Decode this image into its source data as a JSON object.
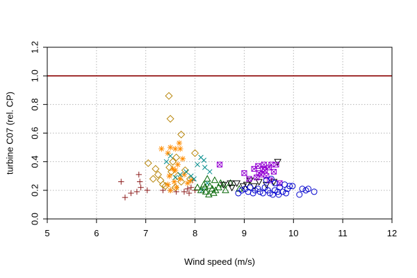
{
  "chart_data": {
    "type": "scatter",
    "title": "",
    "xlabel": "Wind speed (m/s)",
    "ylabel": "turbine  C07  (rel. CP)",
    "xlim": [
      5,
      12
    ],
    "ylim": [
      0,
      1.2
    ],
    "xticks": [
      "5",
      "6",
      "7",
      "8",
      "9",
      "10",
      "11",
      "12"
    ],
    "yticks": [
      "0.0",
      "0.2",
      "0.4",
      "0.6",
      "0.8",
      "1.0",
      "1.2"
    ],
    "grid": true,
    "reference_line": {
      "y": 1.0,
      "color": "#8b0000"
    },
    "series": [
      {
        "marker": "plus",
        "color": "#8b1a1a",
        "points": [
          [
            6.5,
            0.26
          ],
          [
            6.58,
            0.15
          ],
          [
            6.7,
            0.18
          ],
          [
            6.82,
            0.19
          ],
          [
            6.86,
            0.31
          ],
          [
            6.88,
            0.26
          ],
          [
            6.9,
            0.22
          ],
          [
            7.03,
            0.2
          ],
          [
            7.35,
            0.2
          ],
          [
            7.5,
            0.2
          ],
          [
            7.62,
            0.19
          ],
          [
            7.78,
            0.19
          ],
          [
            7.85,
            0.21
          ],
          [
            7.88,
            0.18
          ],
          [
            7.92,
            0.22
          ],
          [
            8.0,
            0.2
          ],
          [
            7.95,
            0.27
          ]
        ]
      },
      {
        "marker": "diamond",
        "color": "#b8860b",
        "points": [
          [
            7.47,
            0.86
          ],
          [
            7.5,
            0.7
          ],
          [
            7.72,
            0.59
          ],
          [
            7.62,
            0.43
          ],
          [
            7.05,
            0.39
          ],
          [
            7.2,
            0.35
          ],
          [
            7.25,
            0.31
          ],
          [
            7.3,
            0.27
          ],
          [
            7.35,
            0.24
          ],
          [
            7.4,
            0.23
          ],
          [
            7.48,
            0.36
          ],
          [
            7.52,
            0.33
          ],
          [
            7.55,
            0.4
          ],
          [
            7.6,
            0.22
          ],
          [
            7.65,
            0.3
          ],
          [
            7.72,
            0.26
          ],
          [
            7.8,
            0.34
          ],
          [
            8.0,
            0.46
          ],
          [
            7.15,
            0.28
          ],
          [
            7.9,
            0.28
          ]
        ]
      },
      {
        "marker": "star",
        "color": "#ff8c00",
        "points": [
          [
            7.32,
            0.49
          ],
          [
            7.5,
            0.5
          ],
          [
            7.6,
            0.49
          ],
          [
            7.7,
            0.49
          ],
          [
            7.68,
            0.53
          ],
          [
            7.75,
            0.42
          ],
          [
            7.45,
            0.46
          ],
          [
            7.55,
            0.35
          ],
          [
            7.48,
            0.3
          ],
          [
            7.58,
            0.26
          ],
          [
            7.62,
            0.22
          ],
          [
            7.7,
            0.28
          ],
          [
            7.78,
            0.31
          ],
          [
            7.85,
            0.25
          ],
          [
            7.92,
            0.27
          ],
          [
            7.65,
            0.38
          ],
          [
            7.5,
            0.2
          ],
          [
            7.45,
            0.24
          ],
          [
            7.6,
            0.34
          ]
        ]
      },
      {
        "marker": "cross",
        "color": "#008b8b",
        "points": [
          [
            7.5,
            0.44
          ],
          [
            7.42,
            0.4
          ],
          [
            7.7,
            0.31
          ],
          [
            7.82,
            0.33
          ],
          [
            7.92,
            0.3
          ],
          [
            8.05,
            0.38
          ],
          [
            8.12,
            0.43
          ],
          [
            8.18,
            0.41
          ],
          [
            8.2,
            0.36
          ],
          [
            8.3,
            0.33
          ],
          [
            8.25,
            0.25
          ],
          [
            8.15,
            0.2
          ],
          [
            7.98,
            0.28
          ],
          [
            7.6,
            0.29
          ]
        ]
      },
      {
        "marker": "triangle",
        "color": "#006400",
        "points": [
          [
            8.05,
            0.22
          ],
          [
            8.12,
            0.2
          ],
          [
            8.18,
            0.24
          ],
          [
            8.22,
            0.19
          ],
          [
            8.28,
            0.17
          ],
          [
            8.3,
            0.23
          ],
          [
            8.35,
            0.21
          ],
          [
            8.38,
            0.18
          ],
          [
            8.42,
            0.2
          ],
          [
            8.48,
            0.22
          ],
          [
            8.52,
            0.25
          ],
          [
            8.58,
            0.24
          ],
          [
            8.62,
            0.2
          ],
          [
            8.72,
            0.25
          ],
          [
            8.9,
            0.21
          ],
          [
            8.25,
            0.28
          ],
          [
            8.4,
            0.27
          ],
          [
            8.2,
            0.22
          ]
        ]
      },
      {
        "marker": "triangle-down",
        "color": "#000000",
        "points": [
          [
            8.58,
            0.24
          ],
          [
            8.72,
            0.25
          ],
          [
            8.85,
            0.25
          ],
          [
            8.98,
            0.23
          ],
          [
            9.05,
            0.24
          ],
          [
            9.12,
            0.27
          ],
          [
            9.2,
            0.23
          ],
          [
            9.3,
            0.26
          ],
          [
            9.45,
            0.24
          ],
          [
            9.6,
            0.26
          ],
          [
            9.68,
            0.4
          ],
          [
            8.75,
            0.22
          ]
        ]
      },
      {
        "marker": "square-x",
        "color": "#9400d3",
        "points": [
          [
            8.5,
            0.38
          ],
          [
            9.0,
            0.32
          ],
          [
            9.1,
            0.28
          ],
          [
            9.2,
            0.35
          ],
          [
            9.28,
            0.37
          ],
          [
            9.3,
            0.32
          ],
          [
            9.35,
            0.31
          ],
          [
            9.4,
            0.38
          ],
          [
            9.42,
            0.34
          ],
          [
            9.45,
            0.3
          ],
          [
            9.5,
            0.36
          ],
          [
            9.52,
            0.27
          ],
          [
            9.55,
            0.38
          ],
          [
            9.6,
            0.33
          ],
          [
            9.65,
            0.38
          ],
          [
            9.72,
            0.25
          ],
          [
            9.25,
            0.29
          ],
          [
            9.38,
            0.35
          ]
        ]
      },
      {
        "marker": "circle",
        "color": "#0000cd",
        "points": [
          [
            8.88,
            0.18
          ],
          [
            8.95,
            0.2
          ],
          [
            9.02,
            0.21
          ],
          [
            9.08,
            0.19
          ],
          [
            9.12,
            0.22
          ],
          [
            9.18,
            0.18
          ],
          [
            9.22,
            0.2
          ],
          [
            9.28,
            0.21
          ],
          [
            9.32,
            0.19
          ],
          [
            9.38,
            0.18
          ],
          [
            9.42,
            0.22
          ],
          [
            9.48,
            0.2
          ],
          [
            9.52,
            0.18
          ],
          [
            9.58,
            0.17
          ],
          [
            9.62,
            0.2
          ],
          [
            9.68,
            0.19
          ],
          [
            9.72,
            0.22
          ],
          [
            9.78,
            0.19
          ],
          [
            9.82,
            0.24
          ],
          [
            9.88,
            0.21
          ],
          [
            9.92,
            0.23
          ],
          [
            9.98,
            0.23
          ],
          [
            10.12,
            0.17
          ],
          [
            10.18,
            0.21
          ],
          [
            10.25,
            0.2
          ],
          [
            10.3,
            0.21
          ],
          [
            10.42,
            0.19
          ],
          [
            9.45,
            0.27
          ],
          [
            9.55,
            0.28
          ],
          [
            9.62,
            0.25
          ],
          [
            9.85,
            0.18
          ],
          [
            9.7,
            0.17
          ]
        ]
      }
    ]
  }
}
